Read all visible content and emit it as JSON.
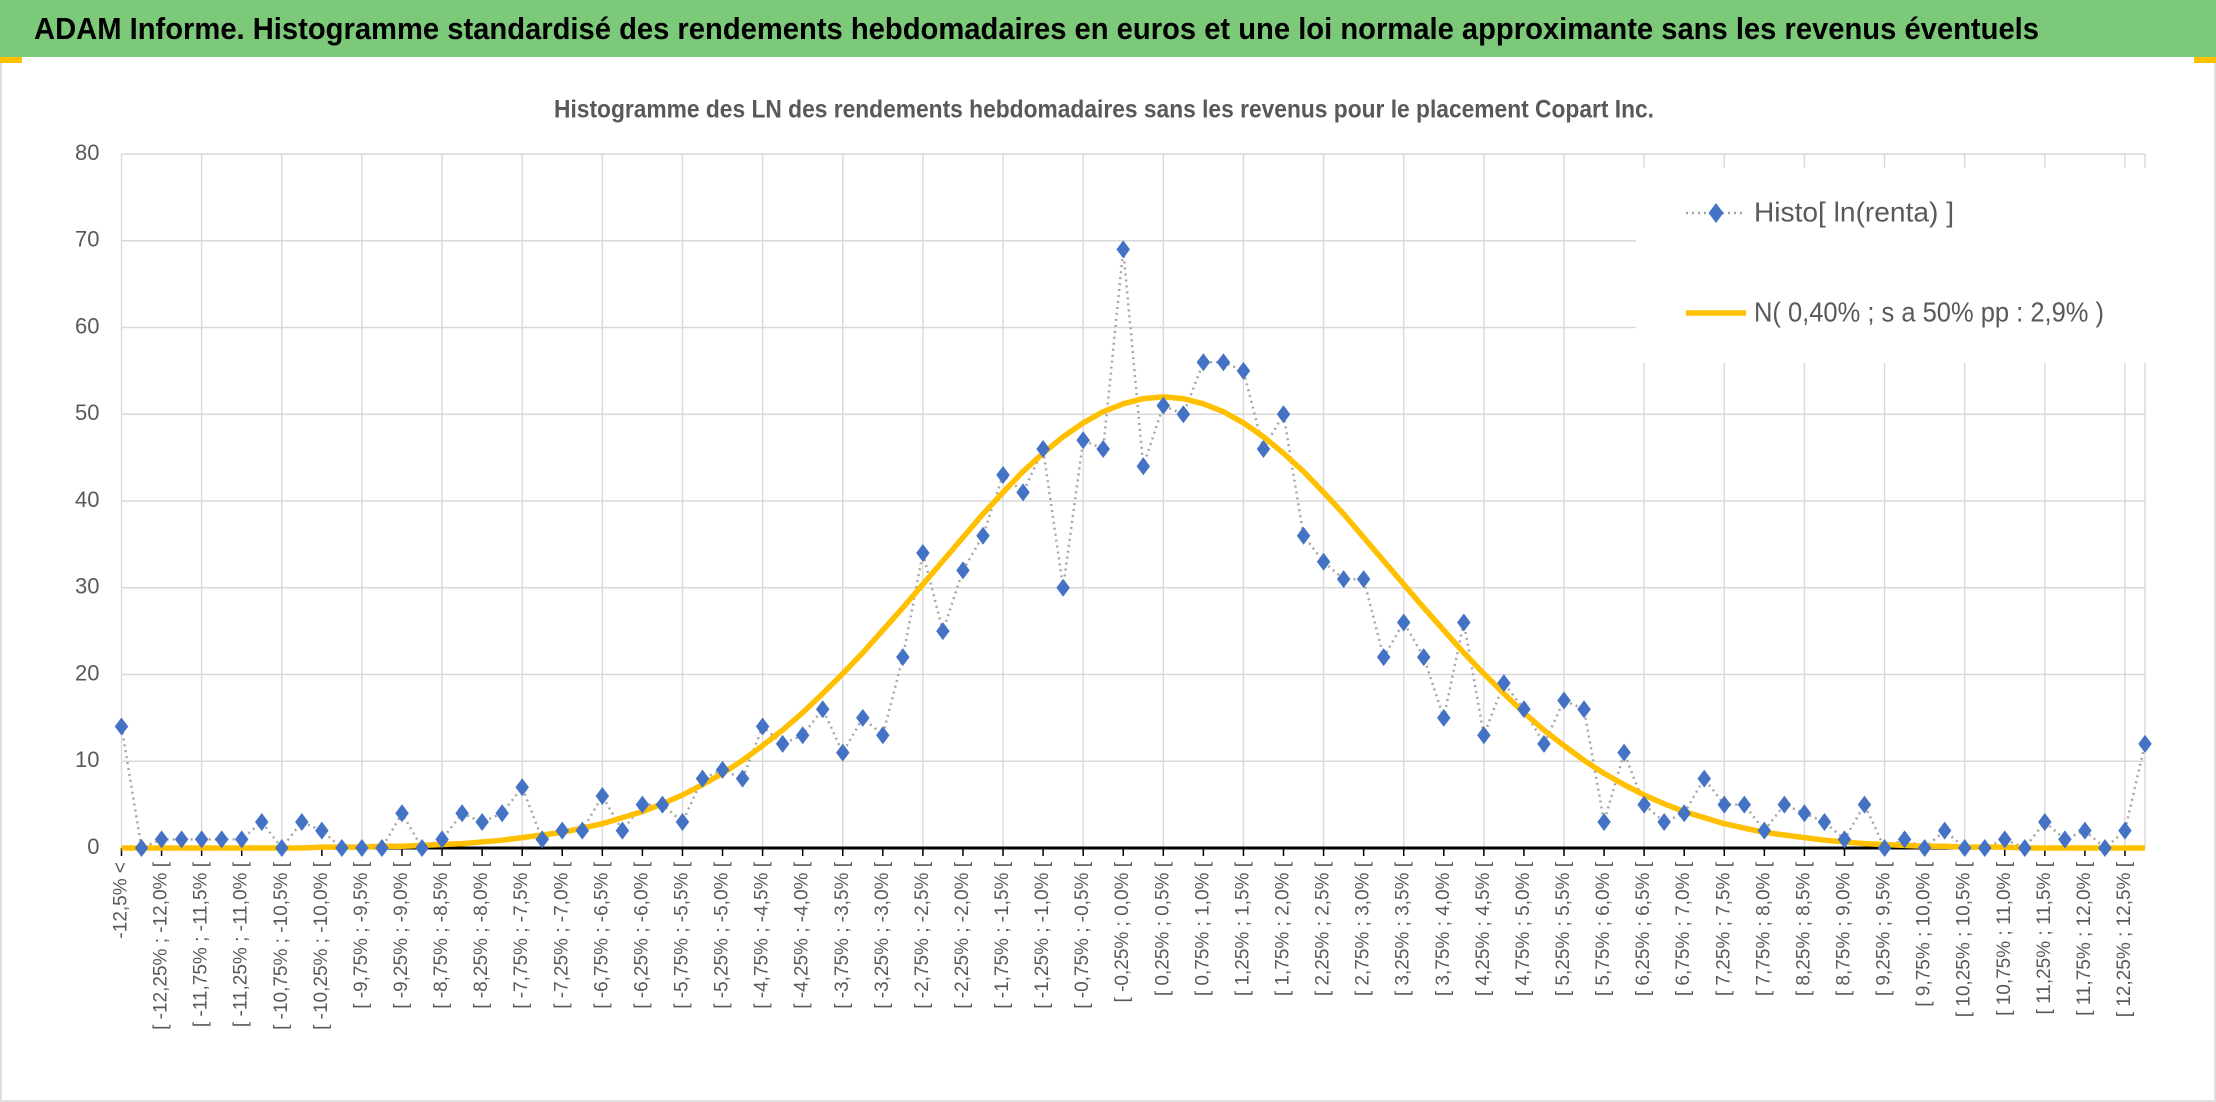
{
  "header": {
    "title": "ADAM Informe. Histogramme standardisé des rendements hebdomadaires en euros et une loi normale approximante sans les revenus éventuels"
  },
  "chart_data": {
    "type": "line",
    "title": "Histogramme des LN des rendements hebdomadaires sans les revenus pour le placement Copart Inc.",
    "categories": [
      "-12,5% <",
      null,
      "[ -12,25% ; -12,0% [",
      null,
      "[ -11,75% ; -11,5% [",
      null,
      "[ -11,25% ; -11,0% [",
      null,
      "[ -10,75% ; -10,5% [",
      null,
      "[ -10,25% ; -10,0% [",
      null,
      "[ -9,75% ; -9,5% [",
      null,
      "[ -9,25% ; -9,0% [",
      null,
      "[ -8,75% ; -8,5% [",
      null,
      "[ -8,25% ; -8,0% [",
      null,
      "[ -7,75% ; -7,5% [",
      null,
      "[ -7,25% ; -7,0% [",
      null,
      "[ -6,75% ; -6,5% [",
      null,
      "[ -6,25% ; -6,0% [",
      null,
      "[ -5,75% ; -5,5% [",
      null,
      "[ -5,25% ; -5,0% [",
      null,
      "[ -4,75% ; -4,5% [",
      null,
      "[ -4,25% ; -4,0% [",
      null,
      "[ -3,75% ; -3,5% [",
      null,
      "[ -3,25% ; -3,0% [",
      null,
      "[ -2,75% ; -2,5% [",
      null,
      "[ -2,25% ; -2,0% [",
      null,
      "[ -1,75% ; -1,5% [",
      null,
      "[ -1,25% ; -1,0% [",
      null,
      "[ -0,75% ; -0,5% [",
      null,
      "[ -0,25% ; 0,0% [",
      null,
      "[ 0,25% ; 0,5% [",
      null,
      "[ 0,75% ; 1,0% [",
      null,
      "[ 1,25% ; 1,5% [",
      null,
      "[ 1,75% ; 2,0% [",
      null,
      "[ 2,25% ; 2,5% [",
      null,
      "[ 2,75% ; 3,0% [",
      null,
      "[ 3,25% ; 3,5% [",
      null,
      "[ 3,75% ; 4,0% [",
      null,
      "[ 4,25% ; 4,5% [",
      null,
      "[ 4,75% ; 5,0% [",
      null,
      "[ 5,25% ; 5,5% [",
      null,
      "[ 5,75% ; 6,0% [",
      null,
      "[ 6,25% ; 6,5% [",
      null,
      "[ 6,75% ; 7,0% [",
      null,
      "[ 7,25% ; 7,5% [",
      null,
      "[ 7,75% ; 8,0% [",
      null,
      "[ 8,25% ; 8,5% [",
      null,
      "[ 8,75% ; 9,0% [",
      null,
      "[ 9,25% ; 9,5% [",
      null,
      "[ 9,75% ; 10,0% [",
      null,
      "[ 10,25% ; 10,5% [",
      null,
      "[ 10,75% ; 11,0% [",
      null,
      "[ 11,25% ; 11,5% [",
      null,
      "[ 11,75% ; 12,0% [",
      null,
      "[ 12,25% ; 12,5% [",
      null
    ],
    "series": [
      {
        "name": "Histo[ ln(renta) ]",
        "color": "#4472c4",
        "line_color": "#a6a6a6",
        "values": [
          14,
          0,
          1,
          1,
          1,
          1,
          1,
          3,
          0,
          3,
          2,
          0,
          0,
          0,
          4,
          0,
          1,
          4,
          3,
          4,
          7,
          1,
          2,
          2,
          6,
          2,
          5,
          5,
          3,
          8,
          9,
          8,
          14,
          12,
          13,
          16,
          11,
          15,
          13,
          22,
          34,
          25,
          32,
          36,
          43,
          41,
          46,
          30,
          47,
          46,
          69,
          44,
          51,
          50,
          56,
          56,
          55,
          46,
          50,
          36,
          33,
          31,
          31,
          22,
          26,
          22,
          15,
          26,
          13,
          19,
          16,
          12,
          17,
          16,
          3,
          11,
          5,
          3,
          4,
          8,
          5,
          5,
          2,
          5,
          4,
          3,
          1,
          5,
          0,
          1,
          0,
          2,
          0,
          0,
          1,
          0,
          3,
          1,
          2,
          0,
          2,
          12
        ]
      },
      {
        "name": "N( 0,40% ; s a 50% pp : 2,9% )",
        "color": "#ffc000",
        "values": [
          0,
          0,
          0,
          0,
          0,
          0,
          0,
          0,
          0,
          0,
          0.1,
          0.1,
          0.1,
          0.2,
          0.2,
          0.3,
          0.4,
          0.5,
          0.7,
          0.9,
          1.2,
          1.5,
          1.8,
          2.3,
          2.8,
          3.5,
          4.2,
          5.1,
          6.1,
          7.3,
          8.6,
          10.1,
          11.8,
          13.6,
          15.6,
          17.8,
          20.1,
          22.5,
          25.1,
          27.7,
          30.4,
          33.1,
          35.8,
          38.5,
          41.0,
          43.4,
          45.5,
          47.4,
          49.0,
          50.3,
          51.2,
          51.8,
          52.0,
          51.8,
          51.2,
          50.3,
          49.0,
          47.4,
          45.5,
          43.4,
          41.0,
          38.5,
          35.8,
          33.1,
          30.4,
          27.7,
          25.1,
          22.5,
          20.1,
          17.8,
          15.6,
          13.6,
          11.8,
          10.1,
          8.6,
          7.3,
          6.1,
          5.1,
          4.2,
          3.5,
          2.8,
          2.3,
          1.8,
          1.5,
          1.2,
          0.9,
          0.7,
          0.5,
          0.4,
          0.3,
          0.2,
          0.2,
          0.1,
          0.1,
          0.1,
          0,
          0,
          0,
          0,
          0,
          0,
          0
        ]
      }
    ],
    "ylim": [
      0,
      80
    ],
    "yticks": [
      0,
      10,
      20,
      30,
      40,
      50,
      60,
      70,
      80
    ],
    "grid": true,
    "legend": "top-right"
  }
}
